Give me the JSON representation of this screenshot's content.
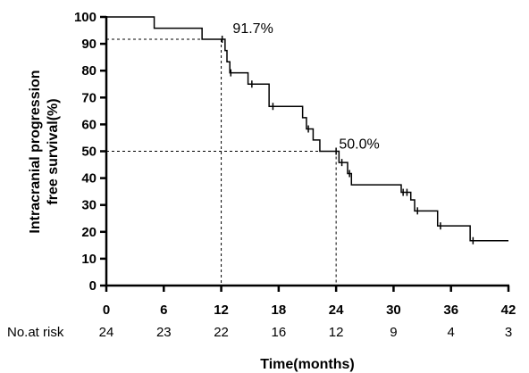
{
  "chart_data": {
    "type": "line",
    "title": "",
    "xlabel": "Time(months)",
    "ylabel_lines": [
      "Intracranial progression",
      "free survival(%)"
    ],
    "xlim": [
      0,
      42
    ],
    "ylim": [
      0,
      100
    ],
    "x_ticks": [
      0,
      6,
      12,
      18,
      24,
      30,
      36,
      42
    ],
    "x_tick_labels": [
      "0",
      "6",
      "12",
      "18",
      "24",
      "30",
      "36",
      "42"
    ],
    "y_ticks": [
      0,
      10,
      20,
      30,
      40,
      50,
      60,
      70,
      80,
      90,
      100
    ],
    "y_tick_labels": [
      "0",
      "10",
      "20",
      "30",
      "40",
      "50",
      "60",
      "70",
      "80",
      "90",
      "100"
    ],
    "grid": false,
    "series": [
      {
        "steps": [
          [
            0,
            100
          ],
          [
            5.0,
            95.8
          ],
          [
            10.0,
            91.7
          ],
          [
            12.4,
            87.5
          ],
          [
            12.6,
            83.3
          ],
          [
            12.9,
            79.2
          ],
          [
            14.8,
            75.0
          ],
          [
            17.0,
            66.7
          ],
          [
            20.5,
            62.5
          ],
          [
            20.9,
            58.3
          ],
          [
            21.6,
            54.2
          ],
          [
            22.3,
            50.0
          ],
          [
            24.3,
            45.8
          ],
          [
            25.2,
            41.7
          ],
          [
            25.6,
            37.5
          ],
          [
            30.8,
            34.7
          ],
          [
            31.8,
            31.9
          ],
          [
            32.2,
            27.8
          ],
          [
            34.6,
            22.2
          ],
          [
            38.0,
            16.7
          ],
          [
            42.0,
            16.7
          ]
        ],
        "censored": [
          [
            12.1,
            91.7
          ],
          [
            13.0,
            79.2
          ],
          [
            15.2,
            75.0
          ],
          [
            17.4,
            66.7
          ],
          [
            21.1,
            58.3
          ],
          [
            24.0,
            50.0
          ],
          [
            24.6,
            45.8
          ],
          [
            25.4,
            41.7
          ],
          [
            31.0,
            34.7
          ],
          [
            31.4,
            34.7
          ],
          [
            32.5,
            27.8
          ],
          [
            34.9,
            22.2
          ],
          [
            38.3,
            16.7
          ]
        ],
        "color": "#000000"
      }
    ],
    "reference_lines": [
      {
        "x": 12,
        "y": 91.7
      },
      {
        "x": 24,
        "y": 50.0
      }
    ],
    "annotations": [
      {
        "text": "91.7%",
        "x": 13.2,
        "y": 96
      },
      {
        "text": "50.0%",
        "x": 24.3,
        "y": 53
      }
    ],
    "risk_table": {
      "label": "No.at risk",
      "values": [
        "24",
        "23",
        "22",
        "16",
        "12",
        "9",
        "4",
        "3"
      ]
    }
  }
}
